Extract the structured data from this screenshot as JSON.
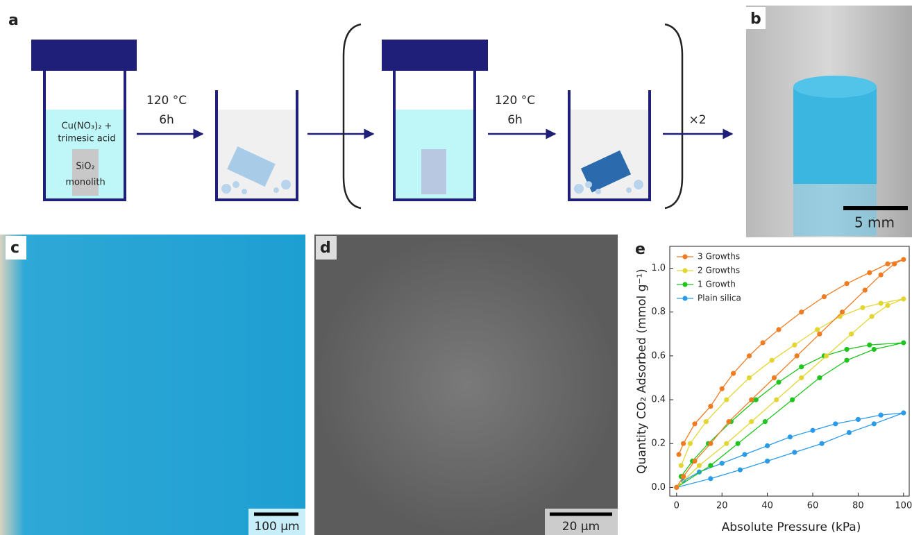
{
  "panels": {
    "a": "a",
    "b": "b",
    "c": "c",
    "d": "d",
    "e": "e"
  },
  "diagram": {
    "solution": [
      "Cu(NO₃)₂ +",
      "trimesic acid"
    ],
    "monolith": [
      "SiO₂",
      "monolith"
    ],
    "step1": [
      "120 °C",
      "6h"
    ],
    "step2": [
      "120 °C",
      "6h"
    ],
    "repeat": "×2"
  },
  "scale_bars": {
    "b": "5 mm",
    "c": "100 μm",
    "d": "20 μm"
  },
  "chart_data": {
    "type": "line",
    "xlabel": "Absolute Pressure (kPa)",
    "ylabel": "Quantity CO₂ Adsorbed (mmol g⁻¹)",
    "xlim": [
      -3,
      102.5
    ],
    "ylim": [
      -0.04,
      1.1
    ],
    "xticks": [
      0,
      20,
      40,
      60,
      80,
      100
    ],
    "yticks": [
      {
        "value": 0,
        "label": "0.0"
      },
      0.2,
      0.4,
      0.6,
      0.8,
      {
        "value": 1,
        "label": "1.0"
      }
    ],
    "legend": "upper left",
    "series": [
      {
        "name": "3 Growths",
        "color": "#f07c22",
        "x": [
          0,
          3,
          8,
          15,
          23,
          33,
          43,
          53,
          63,
          73,
          83,
          90,
          96,
          100,
          93,
          85,
          75,
          65,
          55,
          45,
          38,
          32,
          25,
          20,
          15,
          8,
          3,
          1
        ],
        "values": [
          0,
          0.05,
          0.12,
          0.2,
          0.3,
          0.4,
          0.5,
          0.6,
          0.7,
          0.8,
          0.9,
          0.97,
          1.02,
          1.04,
          1.02,
          0.98,
          0.93,
          0.87,
          0.8,
          0.72,
          0.66,
          0.6,
          0.52,
          0.45,
          0.37,
          0.29,
          0.2,
          0.15
        ]
      },
      {
        "name": "2 Growths",
        "color": "#e3d633",
        "x": [
          0,
          10,
          22,
          33,
          44,
          55,
          66,
          77,
          86,
          93,
          100,
          90,
          82,
          72,
          62,
          52,
          42,
          32,
          22,
          13,
          6,
          2
        ],
        "values": [
          0,
          0.1,
          0.2,
          0.3,
          0.4,
          0.5,
          0.6,
          0.7,
          0.78,
          0.83,
          0.86,
          0.84,
          0.82,
          0.78,
          0.72,
          0.65,
          0.58,
          0.5,
          0.4,
          0.3,
          0.2,
          0.1
        ]
      },
      {
        "name": "1 Growth",
        "color": "#1fc41f",
        "x": [
          0,
          15,
          27,
          39,
          51,
          63,
          75,
          87,
          100,
          85,
          75,
          65,
          55,
          45,
          35,
          24,
          14,
          7,
          2
        ],
        "values": [
          0,
          0.1,
          0.2,
          0.3,
          0.4,
          0.5,
          0.58,
          0.63,
          0.66,
          0.65,
          0.63,
          0.6,
          0.55,
          0.48,
          0.4,
          0.3,
          0.2,
          0.12,
          0.05
        ]
      },
      {
        "name": "Plain silica",
        "color": "#2b9be8",
        "x": [
          0,
          15,
          28,
          40,
          52,
          64,
          76,
          87,
          100,
          90,
          80,
          70,
          60,
          50,
          40,
          30,
          20,
          10,
          3
        ],
        "values": [
          0,
          0.04,
          0.08,
          0.12,
          0.16,
          0.2,
          0.25,
          0.29,
          0.34,
          0.33,
          0.31,
          0.29,
          0.26,
          0.23,
          0.19,
          0.15,
          0.11,
          0.07,
          0.03
        ]
      }
    ]
  }
}
